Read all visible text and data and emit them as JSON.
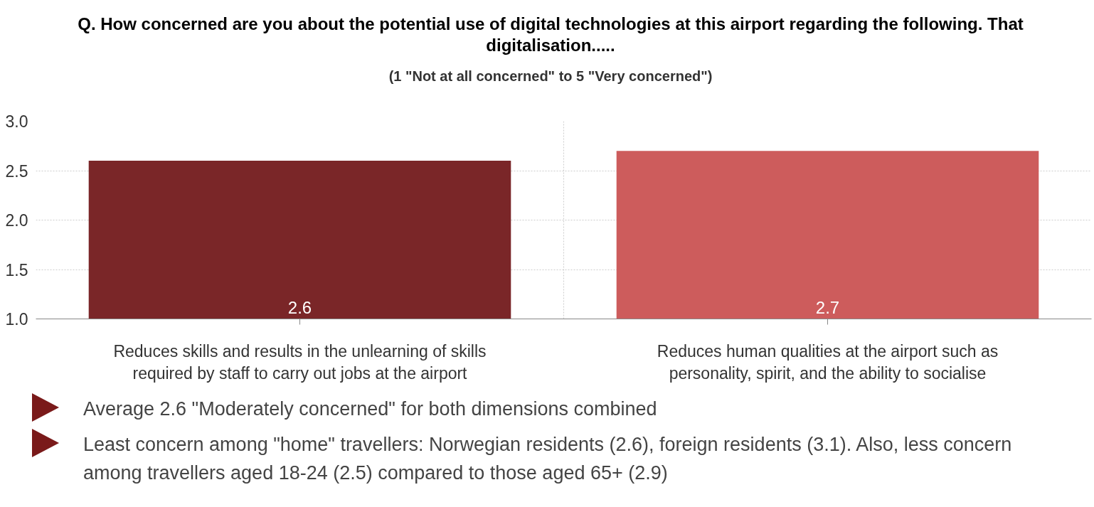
{
  "chart_data": {
    "type": "bar",
    "title": "Q. How concerned are you about the potential use of digital technologies at this airport regarding the following. That digitalisation.....",
    "subtitle": "(1 \"Not at all concerned\" to 5 \"Very concerned\")",
    "categories": [
      "Reduces skills and results in the unlearning of skills required by staff to carry out jobs at the airport",
      "Reduces human qualities at the airport such as personality, spirit, and the ability to socialise"
    ],
    "values": [
      2.6,
      2.7
    ],
    "colors": [
      "#7a2628",
      "#cd5c5c"
    ],
    "ylim": [
      1.0,
      3.0
    ],
    "yticks": [
      {
        "value": 1.0,
        "label": "1.0"
      },
      {
        "value": 1.5,
        "label": "1.5"
      },
      {
        "value": 2.0,
        "label": "2.0"
      },
      {
        "value": 2.5,
        "label": "2.5"
      },
      {
        "value": 3.0,
        "label": "3.0"
      }
    ],
    "grid": true,
    "data_labels": true,
    "annotations": [
      "Average 2.6 \"Moderately concerned\" for both dimensions combined",
      "Least concern among \"home\" travellers: Norwegian residents (2.6), foreign residents (3.1). Also, less concern among travellers aged 18-24 (2.5) compared to those aged 65+ (2.9)"
    ]
  }
}
